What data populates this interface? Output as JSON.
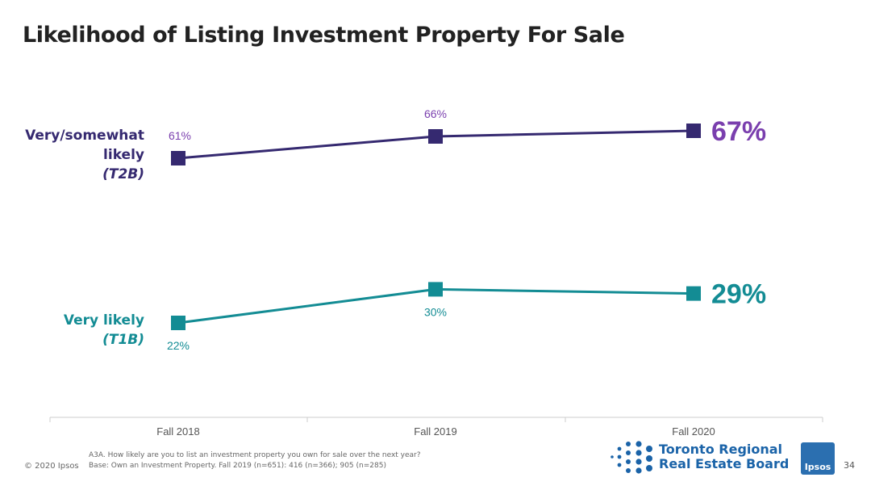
{
  "title": "Likelihood of Listing Investment Property For Sale",
  "colors": {
    "t2b": "#352970",
    "t2b_label": "#7a3fae",
    "t1b": "#138c94",
    "axis": "#cccccc"
  },
  "chart_data": {
    "type": "line",
    "categories": [
      "Fall 2018",
      "Fall 2019",
      "Fall 2020"
    ],
    "series": [
      {
        "name": "Very/somewhat likely (T2B)",
        "label_lines": [
          "Very/somewhat",
          "likely",
          "(T2B)"
        ],
        "values": [
          61,
          66,
          67
        ],
        "labels": [
          "61%",
          "66%",
          "67%"
        ],
        "color": "#352970"
      },
      {
        "name": "Very likely (T1B)",
        "label_lines": [
          "Very likely",
          "(T1B)"
        ],
        "values": [
          22,
          30,
          29
        ],
        "labels": [
          "22%",
          "30%",
          "29%"
        ],
        "color": "#138c94"
      }
    ]
  },
  "footnote": {
    "question": "A3A. How likely are you to list an investment property you own for sale over the next year?",
    "base": "Base: Own an Investment Property. Fall 2019 (n=651): 416 (n=366); 905 (n=285)"
  },
  "copyright": "© 2020 Ipsos",
  "logo_trreb": {
    "line1": "Toronto Regional",
    "line2": "Real Estate Board"
  },
  "logo_ipsos": "Ipsos",
  "page_number": "34"
}
